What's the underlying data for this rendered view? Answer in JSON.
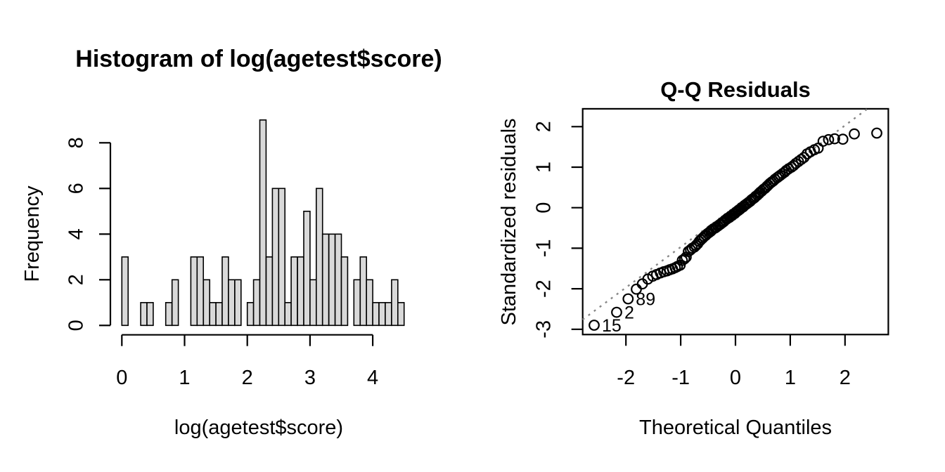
{
  "page": {
    "background": "#ffffff"
  },
  "chart_data": [
    {
      "type": "histogram",
      "title": "Histogram of log(agetest$score)",
      "xlabel": "log(agetest$score)",
      "ylabel": "Frequency",
      "bin_start": 0,
      "bin_width": 0.1,
      "counts": [
        3,
        0,
        0,
        1,
        1,
        0,
        0,
        1,
        2,
        0,
        0,
        3,
        3,
        2,
        1,
        1,
        3,
        2,
        2,
        0,
        1,
        2,
        9,
        3,
        6,
        6,
        1,
        3,
        3,
        5,
        2,
        6,
        4,
        4,
        4,
        3,
        0,
        2,
        3,
        2,
        1,
        1,
        1,
        2,
        1
      ],
      "x_ticks": [
        0,
        1,
        2,
        3,
        4
      ],
      "y_ticks": [
        0,
        2,
        4,
        6,
        8
      ],
      "xlim": [
        0,
        4.5
      ],
      "ylim": [
        0,
        9
      ],
      "bar_fill": "#d9d9d9",
      "bar_stroke": "#000000"
    },
    {
      "type": "scatter",
      "title": "Q-Q Residuals",
      "xlabel": "Theoretical Quantiles",
      "ylabel": "Standardized residuals",
      "x_ticks": [
        -2,
        -1,
        0,
        1,
        2
      ],
      "y_ticks": [
        -3,
        -2,
        -1,
        0,
        1,
        2
      ],
      "xlim": [
        -2.79,
        2.79
      ],
      "ylim": [
        -3.13,
        2.44
      ],
      "point_color": "#000000",
      "reference_line": {
        "slope": 1,
        "intercept": 0.03,
        "style": "dotted",
        "color": "#878787"
      },
      "outlier_labels": [
        {
          "label": "15",
          "x": -2.58,
          "y": -2.9
        },
        {
          "label": "2",
          "x": -2.17,
          "y": -2.58
        },
        {
          "label": "89",
          "x": -1.96,
          "y": -2.25
        }
      ],
      "points": [
        [
          -2.58,
          -2.9
        ],
        [
          -2.17,
          -2.58
        ],
        [
          -1.96,
          -2.25
        ],
        [
          -1.81,
          -2.01
        ],
        [
          -1.7,
          -1.88
        ],
        [
          -1.6,
          -1.76
        ],
        [
          -1.51,
          -1.69
        ],
        [
          -1.44,
          -1.65
        ],
        [
          -1.37,
          -1.61
        ],
        [
          -1.31,
          -1.58
        ],
        [
          -1.25,
          -1.56
        ],
        [
          -1.2,
          -1.53
        ],
        [
          -1.15,
          -1.51
        ],
        [
          -1.1,
          -1.48
        ],
        [
          -1.06,
          -1.45
        ],
        [
          -1.01,
          -1.42
        ],
        [
          -0.97,
          -1.3
        ],
        [
          -0.93,
          -1.26
        ],
        [
          -0.9,
          -1.22
        ],
        [
          -0.86,
          -1.08
        ],
        [
          -0.82,
          -1.04
        ],
        [
          -0.79,
          -1.0
        ],
        [
          -0.75,
          -0.97
        ],
        [
          -0.72,
          -0.93
        ],
        [
          -0.69,
          -0.89
        ],
        [
          -0.66,
          -0.83
        ],
        [
          -0.63,
          -0.79
        ],
        [
          -0.6,
          -0.75
        ],
        [
          -0.57,
          -0.71
        ],
        [
          -0.54,
          -0.68
        ],
        [
          -0.51,
          -0.64
        ],
        [
          -0.48,
          -0.61
        ],
        [
          -0.45,
          -0.58
        ],
        [
          -0.43,
          -0.55
        ],
        [
          -0.4,
          -0.52
        ],
        [
          -0.37,
          -0.5
        ],
        [
          -0.35,
          -0.48
        ],
        [
          -0.32,
          -0.45
        ],
        [
          -0.29,
          -0.42
        ],
        [
          -0.27,
          -0.4
        ],
        [
          -0.24,
          -0.37
        ],
        [
          -0.21,
          -0.34
        ],
        [
          -0.19,
          -0.31
        ],
        [
          -0.16,
          -0.28
        ],
        [
          -0.14,
          -0.26
        ],
        [
          -0.11,
          -0.24
        ],
        [
          -0.09,
          -0.21
        ],
        [
          -0.06,
          -0.19
        ],
        [
          -0.04,
          -0.16
        ],
        [
          -0.01,
          -0.14
        ],
        [
          0.01,
          -0.11
        ],
        [
          0.04,
          -0.08
        ],
        [
          0.06,
          -0.06
        ],
        [
          0.09,
          -0.03
        ],
        [
          0.11,
          0.0
        ],
        [
          0.14,
          0.02
        ],
        [
          0.16,
          0.05
        ],
        [
          0.19,
          0.08
        ],
        [
          0.21,
          0.1
        ],
        [
          0.24,
          0.13
        ],
        [
          0.27,
          0.16
        ],
        [
          0.29,
          0.19
        ],
        [
          0.32,
          0.22
        ],
        [
          0.35,
          0.25
        ],
        [
          0.37,
          0.28
        ],
        [
          0.4,
          0.31
        ],
        [
          0.43,
          0.35
        ],
        [
          0.45,
          0.38
        ],
        [
          0.48,
          0.41
        ],
        [
          0.51,
          0.45
        ],
        [
          0.54,
          0.48
        ],
        [
          0.57,
          0.52
        ],
        [
          0.6,
          0.56
        ],
        [
          0.63,
          0.6
        ],
        [
          0.66,
          0.63
        ],
        [
          0.69,
          0.66
        ],
        [
          0.72,
          0.7
        ],
        [
          0.76,
          0.74
        ],
        [
          0.79,
          0.77
        ],
        [
          0.82,
          0.8
        ],
        [
          0.86,
          0.84
        ],
        [
          0.9,
          0.88
        ],
        [
          0.93,
          0.92
        ],
        [
          0.97,
          0.96
        ],
        [
          1.02,
          1.0
        ],
        [
          1.06,
          1.04
        ],
        [
          1.1,
          1.09
        ],
        [
          1.15,
          1.14
        ],
        [
          1.2,
          1.19
        ],
        [
          1.25,
          1.24
        ],
        [
          1.31,
          1.33
        ],
        [
          1.37,
          1.38
        ],
        [
          1.44,
          1.43
        ],
        [
          1.51,
          1.47
        ],
        [
          1.6,
          1.64
        ],
        [
          1.7,
          1.68
        ],
        [
          1.81,
          1.7
        ],
        [
          1.96,
          1.69
        ],
        [
          2.17,
          1.82
        ],
        [
          2.58,
          1.84
        ]
      ]
    }
  ]
}
